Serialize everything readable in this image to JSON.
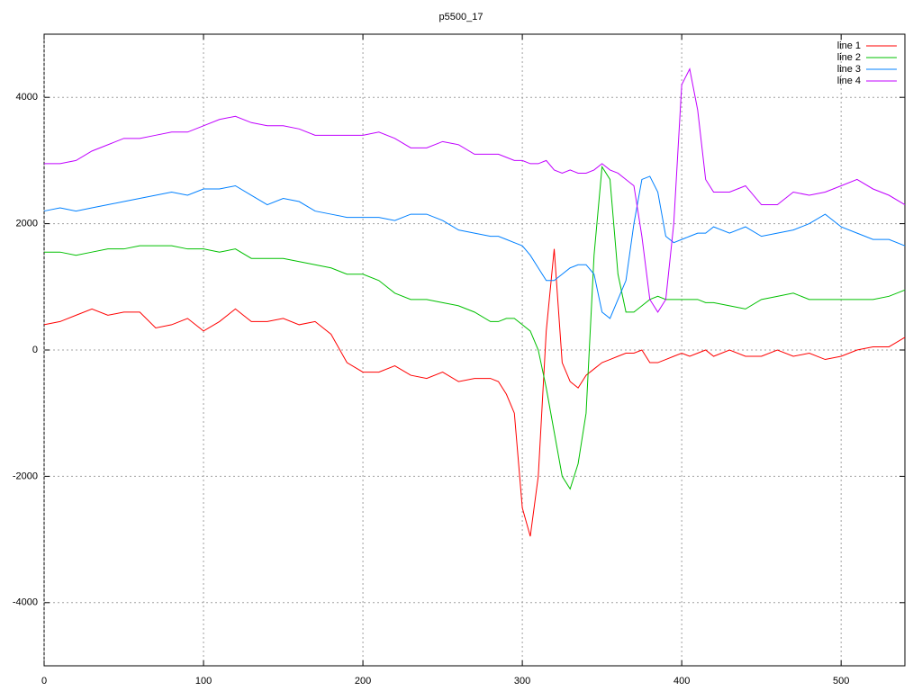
{
  "chart_data": {
    "type": "line",
    "title": "p5500_17",
    "x": [
      0,
      10,
      20,
      30,
      40,
      50,
      60,
      70,
      80,
      90,
      100,
      110,
      120,
      130,
      140,
      150,
      160,
      170,
      180,
      190,
      200,
      210,
      220,
      230,
      240,
      250,
      260,
      270,
      280,
      285,
      290,
      295,
      300,
      305,
      310,
      315,
      320,
      325,
      330,
      335,
      340,
      345,
      350,
      355,
      360,
      365,
      370,
      375,
      380,
      385,
      390,
      395,
      400,
      405,
      410,
      415,
      420,
      430,
      440,
      450,
      460,
      470,
      480,
      490,
      500,
      510,
      520,
      530,
      540
    ],
    "series": [
      {
        "name": "line 1",
        "color": "#ff0000",
        "values": [
          400,
          450,
          550,
          650,
          550,
          600,
          600,
          350,
          400,
          500,
          300,
          450,
          650,
          450,
          450,
          500,
          400,
          450,
          250,
          -200,
          -350,
          -350,
          -250,
          -400,
          -450,
          -350,
          -500,
          -450,
          -450,
          -500,
          -700,
          -1000,
          -2500,
          -2950,
          -2000,
          300,
          1600,
          -200,
          -500,
          -600,
          -400,
          -300,
          -200,
          -150,
          -100,
          -50,
          -50,
          0,
          -200,
          -200,
          -150,
          -100,
          -50,
          -100,
          -50,
          0,
          -100,
          0,
          -100,
          -100,
          0,
          -100,
          -50,
          -150,
          -100,
          0,
          50,
          50,
          200
        ]
      },
      {
        "name": "line 2",
        "color": "#00c000",
        "values": [
          1550,
          1550,
          1500,
          1550,
          1600,
          1600,
          1650,
          1650,
          1650,
          1600,
          1600,
          1550,
          1600,
          1450,
          1450,
          1450,
          1400,
          1350,
          1300,
          1200,
          1200,
          1100,
          900,
          800,
          800,
          750,
          700,
          600,
          450,
          450,
          500,
          500,
          400,
          300,
          0,
          -600,
          -1300,
          -2000,
          -2200,
          -1800,
          -1000,
          1500,
          2900,
          2700,
          1200,
          600,
          600,
          700,
          800,
          850,
          800,
          800,
          800,
          800,
          800,
          750,
          750,
          700,
          650,
          800,
          850,
          900,
          800,
          800,
          800,
          800,
          800,
          850,
          950
        ]
      },
      {
        "name": "line 3",
        "color": "#0080ff",
        "values": [
          2200,
          2250,
          2200,
          2250,
          2300,
          2350,
          2400,
          2450,
          2500,
          2450,
          2550,
          2550,
          2600,
          2450,
          2300,
          2400,
          2350,
          2200,
          2150,
          2100,
          2100,
          2100,
          2050,
          2150,
          2150,
          2050,
          1900,
          1850,
          1800,
          1800,
          1750,
          1700,
          1650,
          1500,
          1300,
          1100,
          1100,
          1200,
          1300,
          1350,
          1350,
          1200,
          600,
          500,
          800,
          1100,
          2000,
          2700,
          2750,
          2500,
          1800,
          1700,
          1750,
          1800,
          1850,
          1850,
          1950,
          1850,
          1950,
          1800,
          1850,
          1900,
          2000,
          2150,
          1950,
          1850,
          1750,
          1750,
          1650
        ]
      },
      {
        "name": "line 4",
        "color": "#c000ff",
        "values": [
          2950,
          2950,
          3000,
          3150,
          3250,
          3350,
          3350,
          3400,
          3450,
          3450,
          3550,
          3650,
          3700,
          3600,
          3550,
          3550,
          3500,
          3400,
          3400,
          3400,
          3400,
          3450,
          3350,
          3200,
          3200,
          3300,
          3250,
          3100,
          3100,
          3100,
          3050,
          3000,
          3000,
          2950,
          2950,
          3000,
          2850,
          2800,
          2850,
          2800,
          2800,
          2850,
          2950,
          2850,
          2800,
          2700,
          2600,
          1800,
          800,
          600,
          800,
          2000,
          4200,
          4450,
          3800,
          2700,
          2500,
          2500,
          2600,
          2300,
          2300,
          2500,
          2450,
          2500,
          2600,
          2700,
          2550,
          2450,
          2300
        ]
      }
    ],
    "xlim": [
      0,
      540
    ],
    "ylim": [
      -5000,
      5000
    ],
    "xticks": [
      0,
      100,
      200,
      300,
      400,
      500
    ],
    "yticks": [
      -4000,
      -2000,
      0,
      2000,
      4000
    ],
    "grid": true,
    "legend": "upper right"
  }
}
